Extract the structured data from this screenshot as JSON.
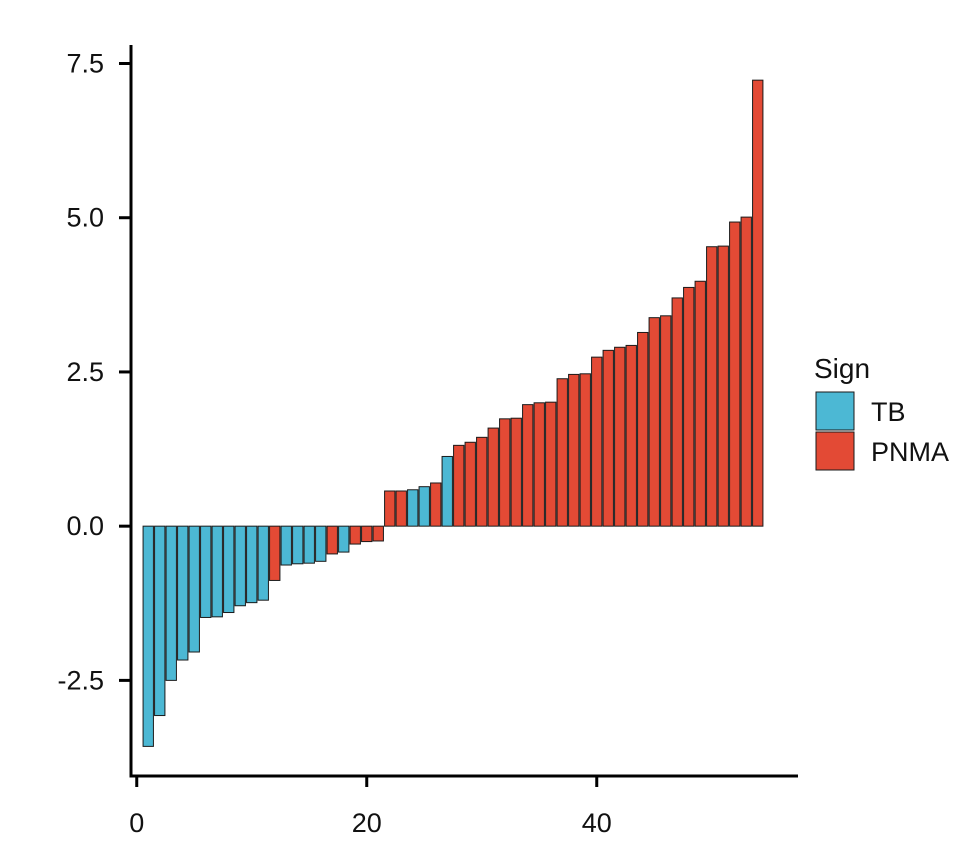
{
  "chart_data": {
    "type": "bar",
    "title": "",
    "xlabel": "",
    "ylabel": "",
    "xlim": [
      -0.5,
      57.5
    ],
    "ylim": [
      -4.05,
      7.8
    ],
    "x_ticks": [
      {
        "value": 0,
        "label": "0"
      },
      {
        "value": 20,
        "label": "20"
      },
      {
        "value": 40,
        "label": "40"
      }
    ],
    "y_ticks": [
      {
        "value": 7.5,
        "label": "7.5"
      },
      {
        "value": 5.0,
        "label": "5.0"
      },
      {
        "value": 2.5,
        "label": "2.5"
      },
      {
        "value": 0.0,
        "label": "0.0"
      },
      {
        "value": -2.5,
        "label": "-2.5"
      }
    ],
    "legend": {
      "title": "Sign",
      "position": "right",
      "entries": [
        {
          "key": "TB",
          "label": "TB",
          "color": "#4cb8d4"
        },
        {
          "key": "PNMA",
          "label": "PNMA",
          "color": "#e34a35"
        }
      ]
    },
    "x": [
      1,
      2,
      3,
      4,
      5,
      6,
      7,
      8,
      9,
      10,
      11,
      12,
      13,
      14,
      15,
      16,
      17,
      18,
      19,
      20,
      21,
      22,
      23,
      24,
      25,
      26,
      27,
      28,
      29,
      30,
      31,
      32,
      33,
      34,
      35,
      36,
      37,
      38,
      39,
      40,
      41,
      42,
      43,
      44,
      45,
      46,
      47,
      48,
      49,
      50,
      51,
      52,
      53,
      54
    ],
    "values": [
      -3.57,
      -3.07,
      -2.5,
      -2.17,
      -2.04,
      -1.48,
      -1.47,
      -1.4,
      -1.29,
      -1.24,
      -1.2,
      -0.88,
      -0.63,
      -0.61,
      -0.6,
      -0.57,
      -0.45,
      -0.42,
      -0.29,
      -0.25,
      -0.24,
      0.57,
      0.57,
      0.59,
      0.64,
      0.7,
      1.13,
      1.31,
      1.36,
      1.44,
      1.59,
      1.74,
      1.75,
      1.97,
      2.0,
      2.01,
      2.39,
      2.46,
      2.47,
      2.74,
      2.85,
      2.9,
      2.93,
      3.14,
      3.38,
      3.41,
      3.7,
      3.87,
      3.97,
      4.53,
      4.54,
      4.93,
      5.01,
      7.23
    ],
    "sign": [
      "TB",
      "TB",
      "TB",
      "TB",
      "TB",
      "TB",
      "TB",
      "TB",
      "TB",
      "TB",
      "TB",
      "PNMA",
      "TB",
      "TB",
      "TB",
      "TB",
      "PNMA",
      "TB",
      "PNMA",
      "PNMA",
      "PNMA",
      "PNMA",
      "PNMA",
      "TB",
      "TB",
      "PNMA",
      "TB",
      "PNMA",
      "PNMA",
      "PNMA",
      "PNMA",
      "PNMA",
      "PNMA",
      "PNMA",
      "PNMA",
      "PNMA",
      "PNMA",
      "PNMA",
      "PNMA",
      "PNMA",
      "PNMA",
      "PNMA",
      "PNMA",
      "PNMA",
      "PNMA",
      "PNMA",
      "PNMA",
      "PNMA",
      "PNMA",
      "PNMA",
      "PNMA",
      "PNMA",
      "PNMA",
      "PNMA"
    ]
  }
}
